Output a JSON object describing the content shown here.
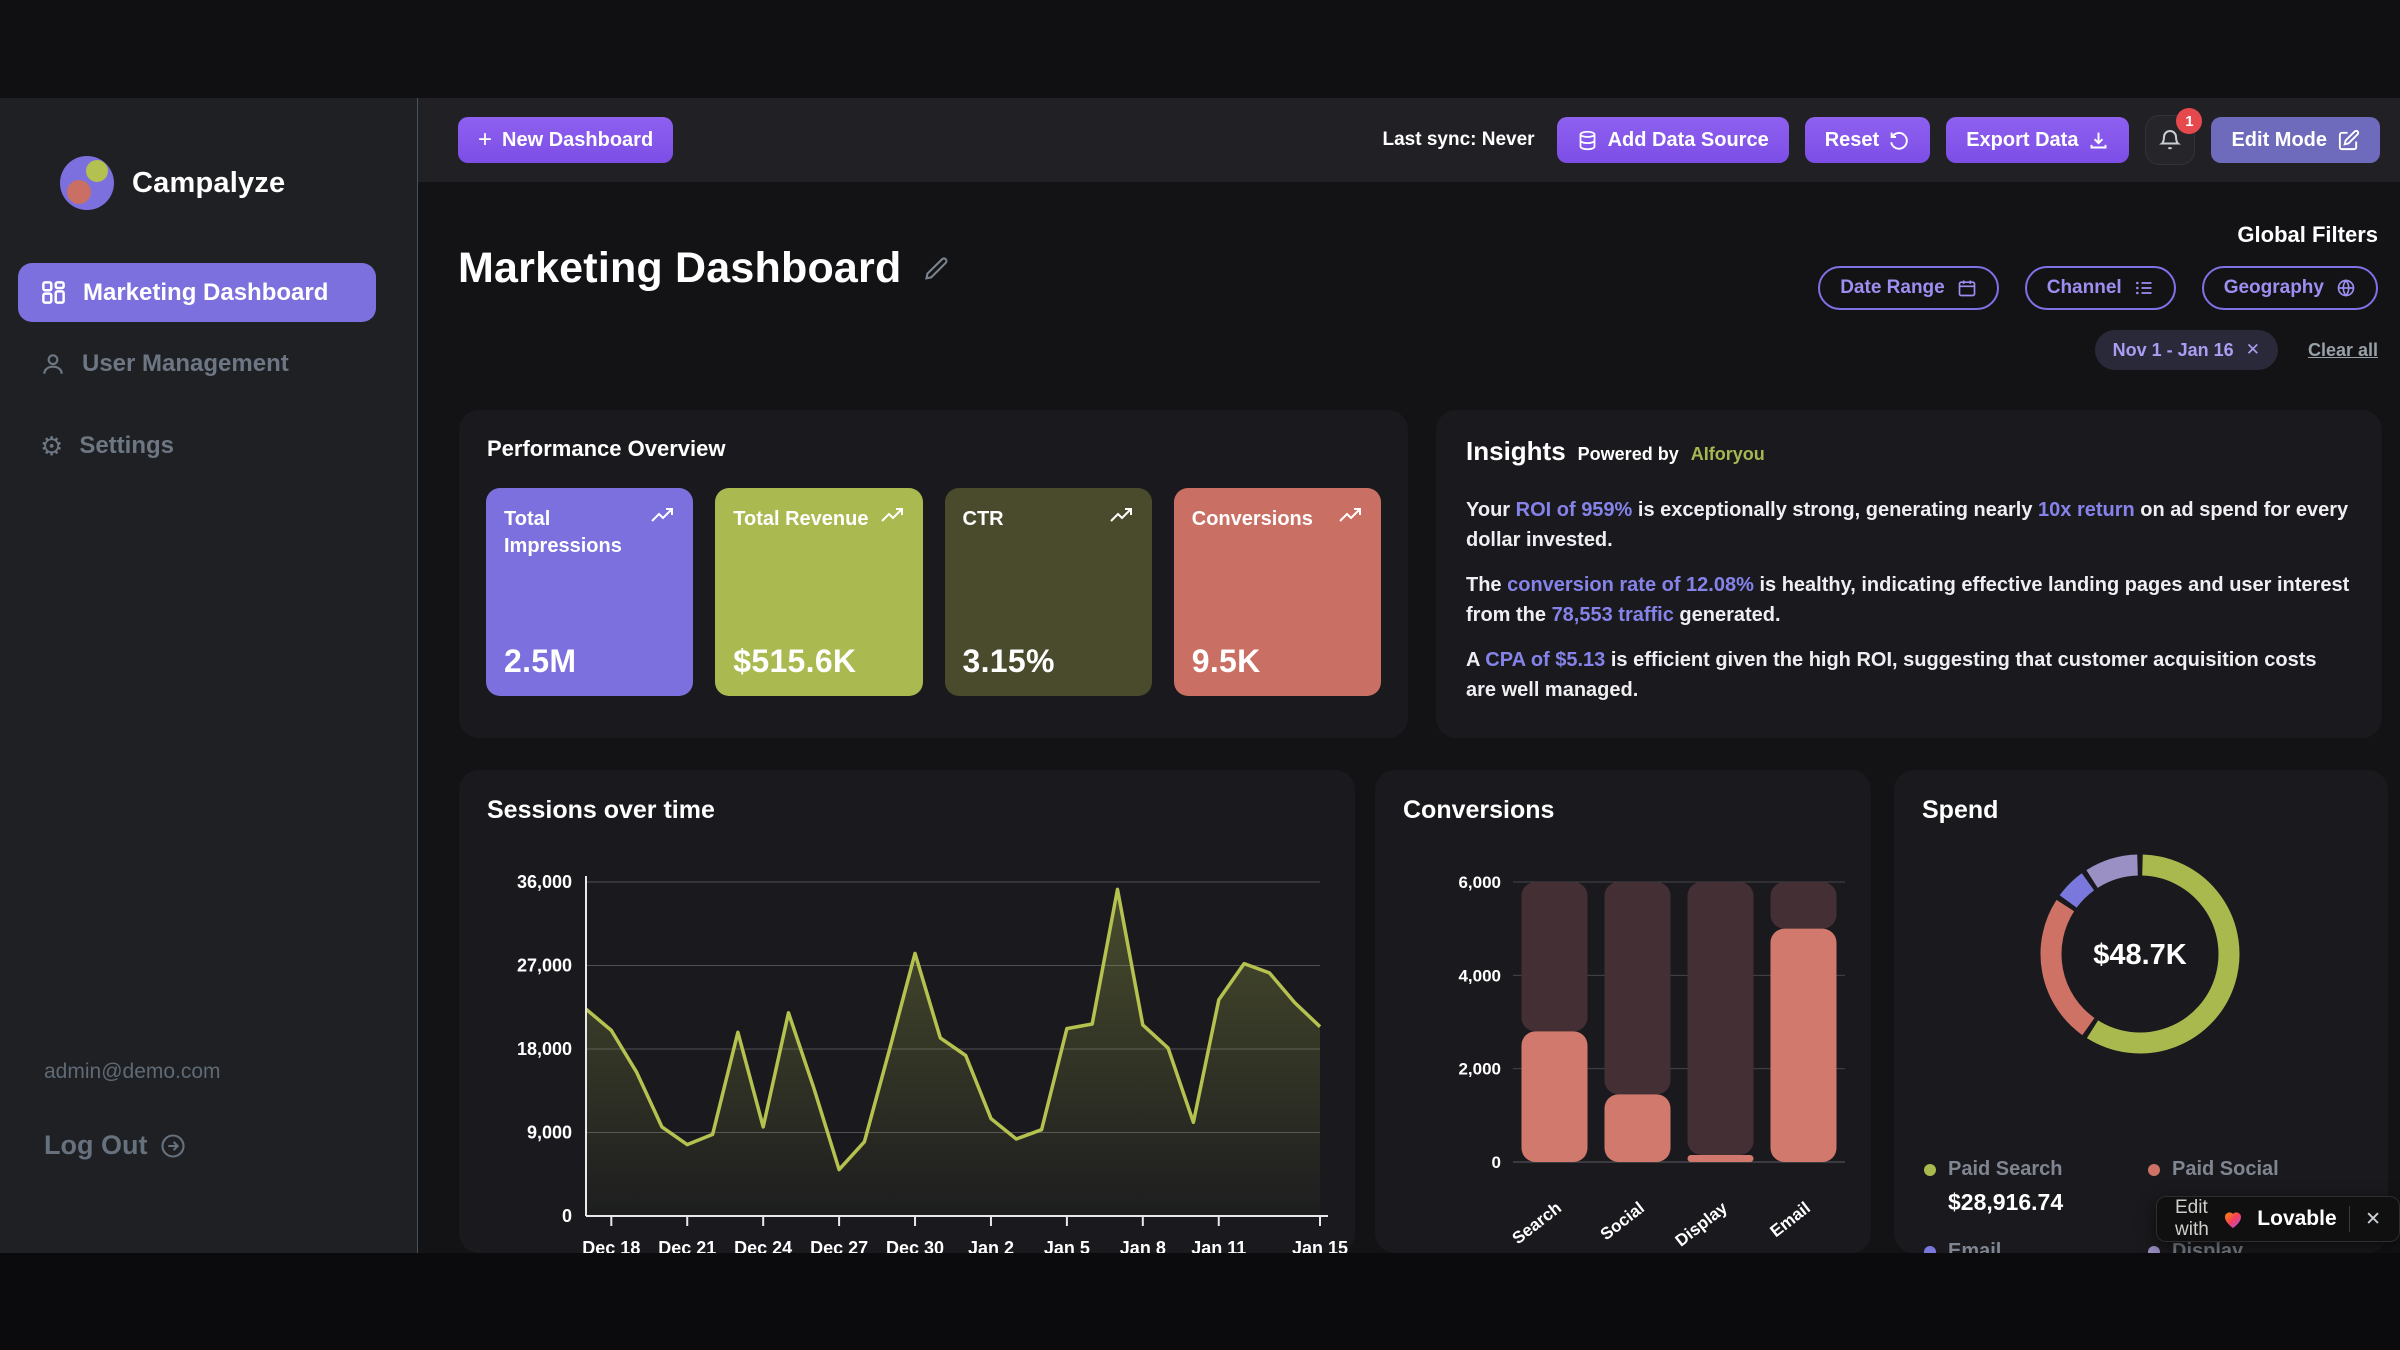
{
  "app": {
    "name": "Campalyze"
  },
  "sidebar": {
    "items": [
      {
        "label": "Marketing Dashboard",
        "active": true
      },
      {
        "label": "User Management",
        "active": false
      },
      {
        "label": "Settings",
        "active": false
      }
    ],
    "user_email": "admin@demo.com",
    "logout_label": "Log Out"
  },
  "toolbar": {
    "new_dashboard_label": "New Dashboard",
    "last_sync": "Last sync: Never",
    "add_data_source_label": "Add Data Source",
    "reset_label": "Reset",
    "export_data_label": "Export Data",
    "edit_mode_label": "Edit Mode",
    "notification_count": "1"
  },
  "header": {
    "title": "Marketing Dashboard",
    "global_filters_label": "Global Filters",
    "filter_buttons": [
      {
        "label": "Date Range",
        "icon": "calendar"
      },
      {
        "label": "Channel",
        "icon": "list"
      },
      {
        "label": "Geography",
        "icon": "globe"
      }
    ],
    "active_filter_chip": "Nov 1 - Jan 16",
    "clear_all_label": "Clear all"
  },
  "icons": {
    "plus": "+",
    "close": "✕",
    "gear": "⚙"
  },
  "performance": {
    "title": "Performance Overview",
    "kpis": [
      {
        "label": "Total Impressions",
        "value": "2.5M",
        "color": "#7b70dd"
      },
      {
        "label": "Total Revenue",
        "value": "$515.6K",
        "color": "#aab950"
      },
      {
        "label": "CTR",
        "value": "3.15%",
        "color": "#4a4b2d"
      },
      {
        "label": "Conversions",
        "value": "9.5K",
        "color": "#c96f63"
      }
    ]
  },
  "insights": {
    "title": "Insights",
    "powered_by": "Powered by",
    "provider": "AIforyou",
    "paragraphs": [
      {
        "parts": [
          {
            "t": "Your "
          },
          {
            "t": "ROI of 959%",
            "hl": true
          },
          {
            "t": " is exceptionally strong, generating nearly "
          },
          {
            "t": "10x return",
            "hl": true
          },
          {
            "t": " on ad spend for every dollar invested."
          }
        ]
      },
      {
        "parts": [
          {
            "t": "The "
          },
          {
            "t": "conversion rate of 12.08%",
            "hl": true
          },
          {
            "t": " is healthy, indicating effective landing pages and user interest from the "
          },
          {
            "t": "78,553 traffic",
            "hl": true
          },
          {
            "t": " generated."
          }
        ]
      },
      {
        "parts": [
          {
            "t": "A "
          },
          {
            "t": "CPA of $5.13",
            "hl": true
          },
          {
            "t": " is efficient given the high ROI, suggesting that customer acquisition costs are well managed."
          }
        ]
      }
    ]
  },
  "chart_data": [
    {
      "type": "area",
      "title": "Sessions over time",
      "ylabel": "",
      "ylim": [
        0,
        36000
      ],
      "yticks": [
        0,
        9000,
        18000,
        27000,
        36000
      ],
      "grid": true,
      "line_color": "#b6c24f",
      "values": [
        22300,
        20000,
        15500,
        9600,
        7700,
        8800,
        19800,
        9600,
        21900,
        13800,
        5000,
        8000,
        18000,
        28300,
        19200,
        17300,
        10500,
        8300,
        9300,
        20200,
        20700,
        35200,
        20600,
        18100,
        10100,
        23300,
        27200,
        26200,
        23000,
        20400
      ],
      "tick_labels": [
        "Dec 18",
        "Dec 21",
        "Dec 24",
        "Dec 27",
        "Dec 30",
        "Jan 2",
        "Jan 5",
        "Jan 8",
        "Jan 11",
        "Jan 15"
      ],
      "tick_indices": [
        1,
        4,
        7,
        10,
        13,
        16,
        19,
        22,
        25,
        29
      ]
    },
    {
      "type": "bar",
      "title": "Conversions",
      "categories": [
        "Search",
        "Social",
        "Display",
        "Email"
      ],
      "values": [
        2800,
        1450,
        150,
        5000
      ],
      "ylim": [
        0,
        6000
      ],
      "yticks": [
        0,
        2000,
        4000,
        6000
      ],
      "grid": true,
      "bar_color": "#d1796c",
      "track_color": "#443034",
      "track_max": 6000
    },
    {
      "type": "donut",
      "title": "Spend",
      "center_label": "$48.7K",
      "slices": [
        {
          "label": "Paid Search",
          "pct": 59.4,
          "color": "#a9b94e",
          "value_label": "$28,916.74"
        },
        {
          "label": "Paid Social",
          "pct": 25.2,
          "color": "#cd7265",
          "value_label": ""
        },
        {
          "label": "Email",
          "pct": 5.9,
          "color": "#7a78dd",
          "value_label": ""
        },
        {
          "label": "Display",
          "pct": 9.5,
          "color": "#9b90c4",
          "value_label": ""
        }
      ],
      "legend_position": "bottom"
    }
  ],
  "lovable": {
    "prefix": "Edit with",
    "brand": "Lovable"
  }
}
